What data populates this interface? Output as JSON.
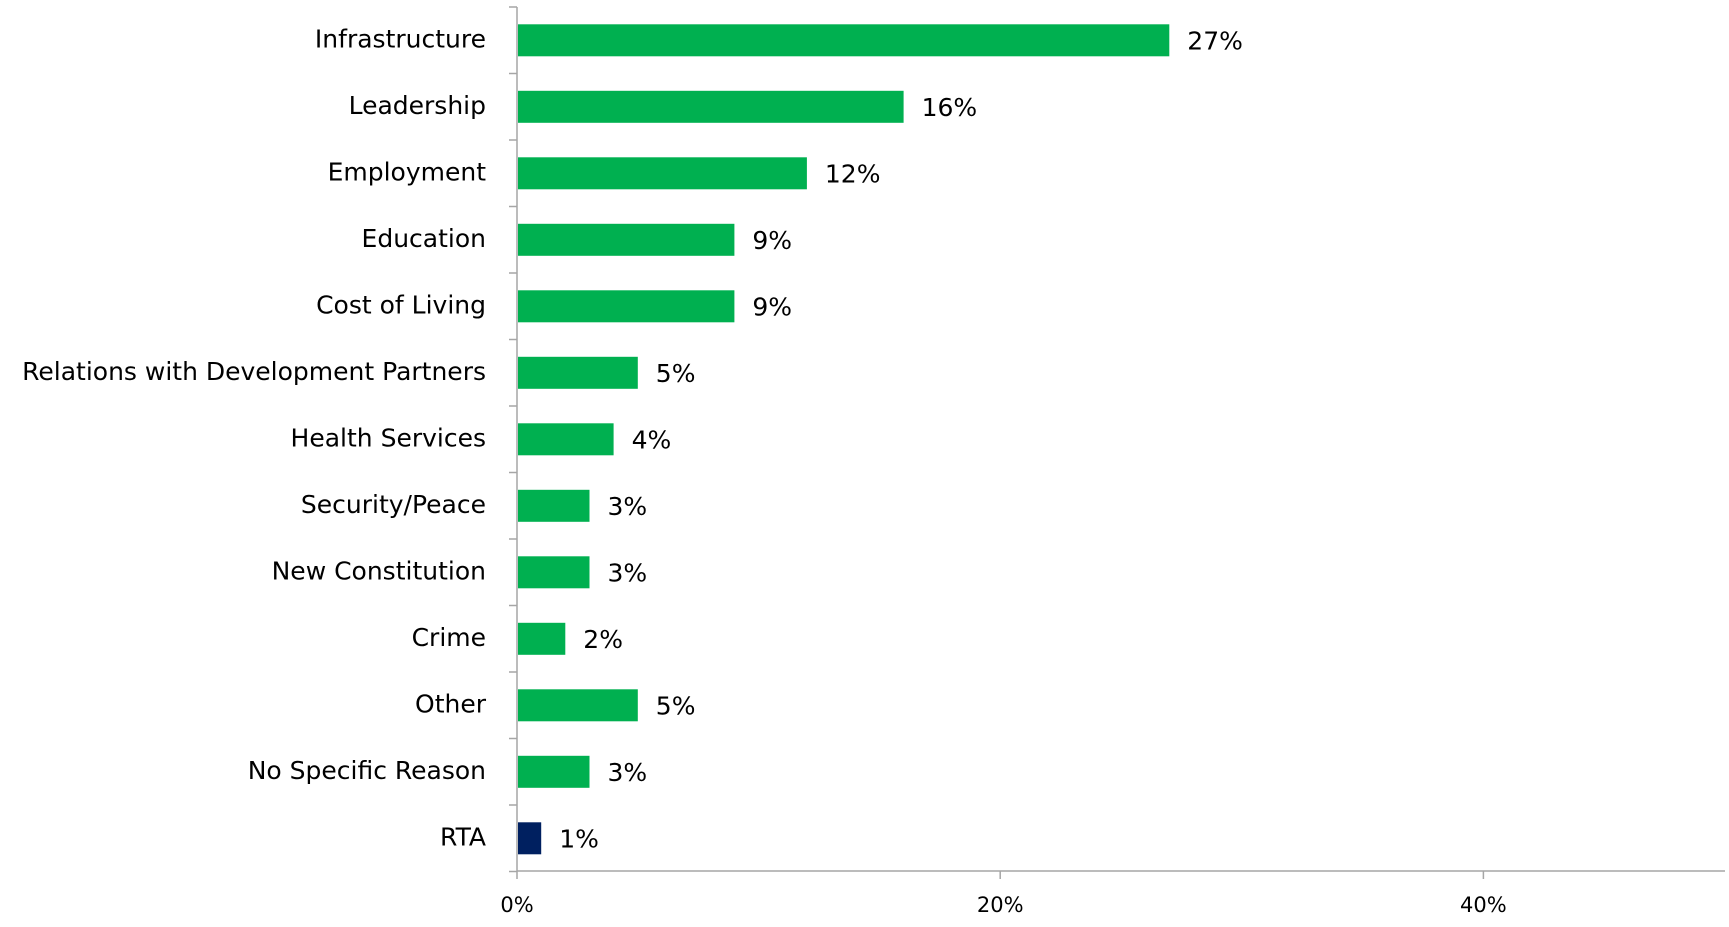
{
  "chart_data": {
    "type": "bar",
    "orientation": "horizontal",
    "categories": [
      "Infrastructure",
      "Leadership",
      "Employment",
      "Education",
      "Cost of Living",
      "Relations with Development Partners",
      "Health Services",
      "Security/Peace",
      "New Constitution",
      "Crime",
      "Other",
      "No Specific Reason",
      "RTA"
    ],
    "values": [
      27,
      16,
      12,
      9,
      9,
      5,
      4,
      3,
      3,
      2,
      5,
      3,
      1
    ],
    "value_labels": [
      "27%",
      "16%",
      "12%",
      "9%",
      "9%",
      "5%",
      "4%",
      "3%",
      "3%",
      "2%",
      "5%",
      "3%",
      "1%"
    ],
    "bar_colors": [
      "#00B050",
      "#00B050",
      "#00B050",
      "#00B050",
      "#00B050",
      "#00B050",
      "#00B050",
      "#00B050",
      "#00B050",
      "#00B050",
      "#00B050",
      "#00B050",
      "#002060"
    ],
    "x_ticks": [
      0,
      20,
      40
    ],
    "x_tick_labels": [
      "0%",
      "20%",
      "40%"
    ],
    "xlim": [
      0,
      50
    ],
    "title": "",
    "xlabel": "",
    "ylabel": "",
    "grid": false,
    "legend": "none",
    "axis_color": "#A6A6A6"
  }
}
